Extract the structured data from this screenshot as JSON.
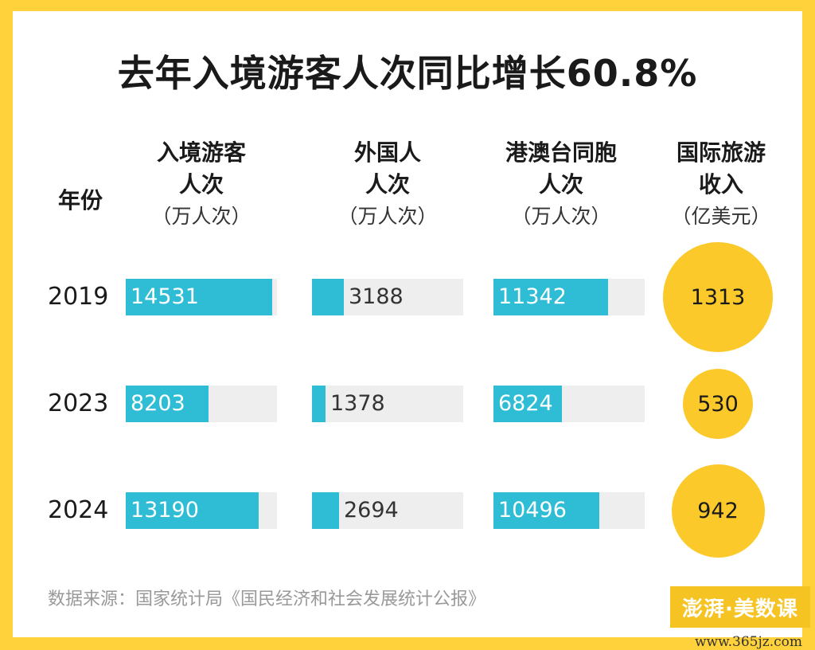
{
  "title": "去年入境游客人次同比增长60.8%",
  "header": {
    "year_label": "年份",
    "columns": [
      {
        "line1": "入境游客",
        "line2": "人次",
        "unit": "（万人次）"
      },
      {
        "line1": "外国人",
        "line2": "人次",
        "unit": "（万人次）"
      },
      {
        "line1": "港澳台同胞",
        "line2": "人次",
        "unit": "（万人次）"
      },
      {
        "line1": "国际旅游",
        "line2": "收入",
        "unit": "（亿美元）"
      }
    ]
  },
  "chart_data": {
    "type": "table",
    "years": [
      "2019",
      "2023",
      "2024"
    ],
    "series": [
      {
        "name": "入境游客人次（万人次）",
        "values": [
          14531,
          8203,
          13190
        ],
        "max": 15000
      },
      {
        "name": "外国人人次（万人次）",
        "values": [
          3188,
          1378,
          2694
        ],
        "max": 15000
      },
      {
        "name": "港澳台同胞人次（万人次）",
        "values": [
          11342,
          6824,
          10496
        ],
        "max": 15000
      },
      {
        "name": "国际旅游收入（亿美元）",
        "values": [
          1313,
          530,
          942
        ],
        "max": 1313
      }
    ],
    "colors": {
      "bar": "#2fbdd6",
      "track": "#eeeeee",
      "circle": "#fcc92a",
      "border": "#ffd13a"
    }
  },
  "source": "数据来源：国家统计局《国民经济和社会发展统计公报》",
  "logo": "澎湃·美数课",
  "watermark": "www.365jz.com"
}
